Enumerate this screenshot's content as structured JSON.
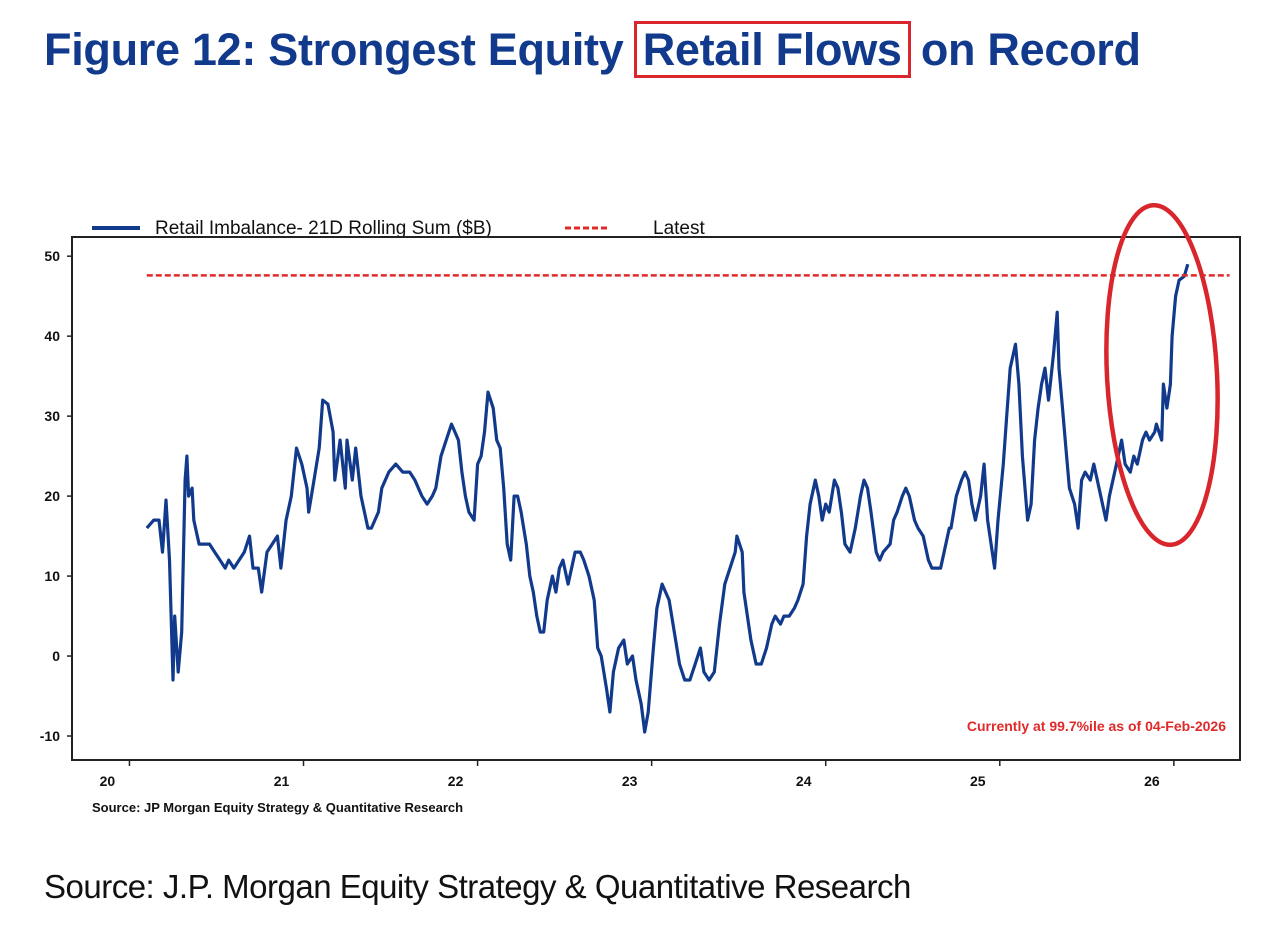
{
  "title": {
    "before": "Figure 12: Strongest Equity ",
    "highlight": "Retail Flows",
    "after": " on Record"
  },
  "footer_source": "Source: J.P. Morgan Equity Strategy & Quantitative Research",
  "colors": {
    "title": "#123a8c",
    "series": "#123a8c",
    "latest": "#e02a2a",
    "annotation": "#d9262c"
  },
  "chart_data": {
    "type": "line",
    "title": "",
    "xlabel": "",
    "ylabel": "",
    "xlim": [
      19.67,
      26.38
    ],
    "ylim": [
      -13,
      52.4
    ],
    "xticks": [
      20,
      21,
      22,
      23,
      24,
      25,
      26
    ],
    "xtick_labels": [
      "20",
      "21",
      "22",
      "23",
      "24",
      "25",
      "26"
    ],
    "yticks": [
      50,
      40,
      30,
      20,
      10,
      0,
      -10
    ],
    "ytick_labels": [
      "50",
      "40",
      "30",
      "20",
      "10",
      "0",
      "-10"
    ],
    "grid": false,
    "legend_placement": "top-left, above plot",
    "annotation": "Currently at 99.7%ile as of 04-Feb-2026",
    "source_note": "Source: JP Morgan Equity Strategy & Quantitative Research",
    "highlight": "red ellipse around latest surge (late 2025 to Feb 2026)",
    "series": [
      {
        "name": "Retail Imbalance- 21D Rolling Sum ($B)",
        "style": "solid",
        "x": [
          20.1,
          20.14,
          20.17,
          20.19,
          20.21,
          20.23,
          20.25,
          20.26,
          20.28,
          20.3,
          20.32,
          20.33,
          20.34,
          20.36,
          20.37,
          20.4,
          20.43,
          20.46,
          20.49,
          20.52,
          20.55,
          20.57,
          20.6,
          20.63,
          20.66,
          20.69,
          20.71,
          20.74,
          20.76,
          20.79,
          20.82,
          20.85,
          20.87,
          20.9,
          20.93,
          20.96,
          20.99,
          21.02,
          21.03,
          21.06,
          21.09,
          21.11,
          21.14,
          21.17,
          21.18,
          21.21,
          21.24,
          21.25,
          21.28,
          21.3,
          21.33,
          21.37,
          21.39,
          21.43,
          21.45,
          21.49,
          21.53,
          21.57,
          21.61,
          21.64,
          21.68,
          21.71,
          21.74,
          21.76,
          21.79,
          21.82,
          21.85,
          21.87,
          21.89,
          21.91,
          21.93,
          21.95,
          21.98,
          22.0,
          22.02,
          22.04,
          22.06,
          22.09,
          22.11,
          22.13,
          22.15,
          22.17,
          22.19,
          22.21,
          22.23,
          22.25,
          22.28,
          22.3,
          22.32,
          22.34,
          22.36,
          22.38,
          22.4,
          22.43,
          22.45,
          22.47,
          22.49,
          22.52,
          22.56,
          22.59,
          22.61,
          22.64,
          22.67,
          22.69,
          22.71,
          22.74,
          22.76,
          22.78,
          22.81,
          22.84,
          22.86,
          22.89,
          22.91,
          22.94,
          22.96,
          22.98,
          23.01,
          23.03,
          23.06,
          23.08,
          23.1,
          23.13,
          23.16,
          23.19,
          23.22,
          23.25,
          23.28,
          23.3,
          23.33,
          23.36,
          23.39,
          23.42,
          23.45,
          23.48,
          23.49,
          23.52,
          23.53,
          23.55,
          23.57,
          23.6,
          23.63,
          23.66,
          23.69,
          23.71,
          23.74,
          23.76,
          23.79,
          23.82,
          23.84,
          23.87,
          23.89,
          23.91,
          23.94,
          23.96,
          23.98,
          24.0,
          24.02,
          24.05,
          24.07,
          24.09,
          24.11,
          24.14,
          24.17,
          24.2,
          24.22,
          24.24,
          24.26,
          24.29,
          24.31,
          24.33,
          24.37,
          24.39,
          24.41,
          24.44,
          24.46,
          24.48,
          24.51,
          24.53,
          24.56,
          24.59,
          24.61,
          24.63,
          24.66,
          24.68,
          24.71,
          24.72,
          24.75,
          24.78,
          24.8,
          24.82,
          24.84,
          24.86,
          24.89,
          24.91,
          24.93,
          24.95,
          24.97,
          24.99,
          25.02,
          25.04,
          25.06,
          25.09,
          25.11,
          25.13,
          25.16,
          25.18,
          25.2,
          25.22,
          25.24,
          25.26,
          25.28,
          25.29,
          25.31,
          25.33,
          25.34,
          25.36,
          25.38,
          25.4,
          25.43,
          25.45,
          25.47,
          25.49,
          25.52,
          25.54,
          25.56,
          25.59,
          25.61,
          25.63,
          25.66,
          25.68,
          25.7,
          25.72,
          25.75,
          25.77,
          25.79,
          25.82,
          25.84,
          25.86,
          25.89,
          25.9,
          25.93,
          25.94,
          25.96,
          25.98,
          25.99,
          26.01,
          26.03,
          26.06,
          26.08
        ],
        "y": [
          16,
          17,
          17,
          13,
          19.5,
          12,
          -3,
          5,
          -2,
          3,
          22,
          25,
          20,
          21,
          17,
          14,
          14,
          14,
          13,
          12,
          11,
          12,
          11,
          12,
          13,
          15,
          11,
          11,
          8,
          13,
          14,
          15,
          11,
          17,
          20,
          26,
          24,
          21,
          18,
          22,
          26,
          32,
          31.5,
          28,
          22,
          27,
          21,
          27,
          22,
          26,
          20,
          16,
          16,
          18,
          21,
          23,
          24,
          23,
          23,
          22,
          20,
          19,
          20,
          21,
          25,
          27,
          29,
          28,
          27,
          23,
          20,
          18,
          17,
          24,
          25,
          28,
          33,
          31,
          27,
          26,
          21,
          14,
          12,
          20,
          20,
          18,
          14,
          10,
          8,
          5,
          3,
          3,
          7,
          10,
          8,
          11,
          12,
          9,
          13,
          13,
          12,
          10,
          7,
          1,
          0,
          -4,
          -7,
          -2,
          1,
          2,
          -1,
          0,
          -3,
          -6,
          -9.5,
          -7,
          1,
          6,
          9,
          8,
          7,
          3,
          -1,
          -3,
          -3,
          -1,
          1,
          -2,
          -3,
          -2,
          4,
          9,
          11,
          13,
          15,
          13,
          8,
          5,
          2,
          -1,
          -1,
          1,
          4,
          5,
          4,
          5,
          5,
          6,
          7,
          9,
          15,
          19,
          22,
          20,
          17,
          19,
          18,
          22,
          21,
          18,
          14,
          13,
          16,
          20,
          22,
          21,
          18,
          13,
          12,
          13,
          14,
          17,
          18,
          20,
          21,
          20,
          17,
          16,
          15,
          12,
          11,
          11,
          11,
          13,
          16,
          16,
          20,
          22,
          23,
          22,
          19,
          17,
          20,
          24,
          17,
          14,
          11,
          17,
          24,
          30,
          36,
          39,
          34,
          25,
          17,
          19,
          27,
          31,
          34,
          36,
          32,
          34,
          38,
          43,
          36,
          31,
          26,
          21,
          19,
          16,
          22,
          23,
          22,
          24,
          22,
          19,
          17,
          20,
          23,
          25,
          27,
          24,
          23,
          25,
          24,
          27,
          28,
          27,
          28,
          29,
          27,
          34,
          31,
          34,
          40,
          45,
          47,
          47.5,
          49
        ]
      },
      {
        "name": "Latest",
        "style": "dashed",
        "x": [
          20.1,
          26.32
        ],
        "y": [
          47.6,
          47.6
        ]
      }
    ]
  }
}
